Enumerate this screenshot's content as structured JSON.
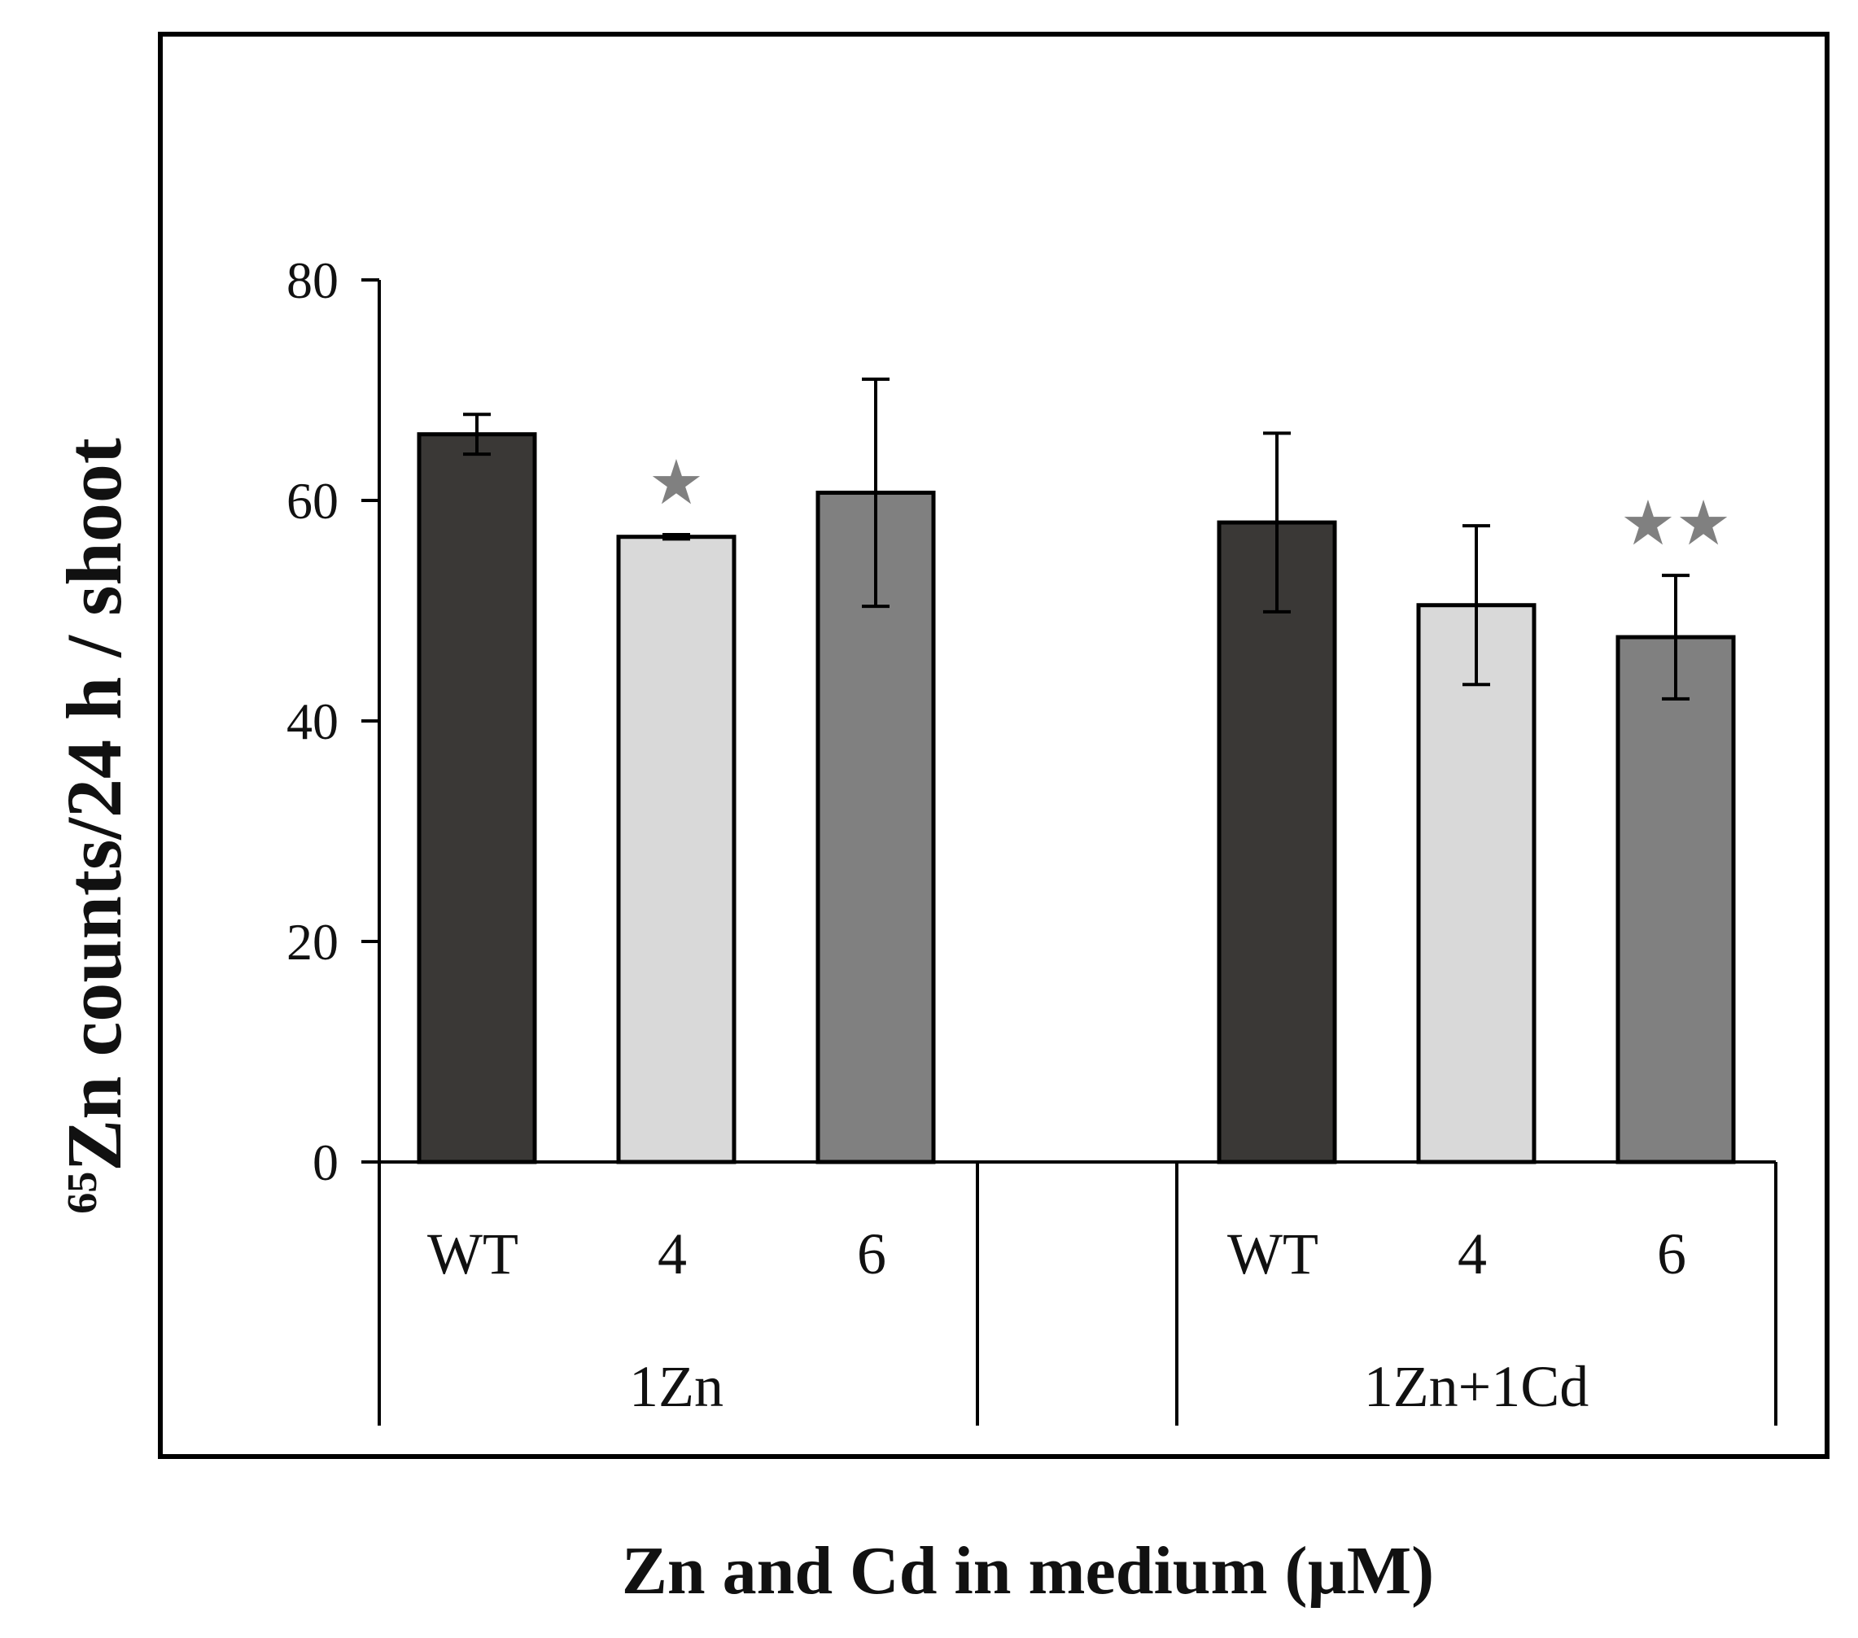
{
  "chart_data": {
    "type": "bar",
    "title": "",
    "ylabel_superscript": "65",
    "ylabel": "Zn counts/24 h / shoot",
    "xlabel": "Zn and Cd in medium (µM)",
    "ylim": [
      0,
      80
    ],
    "yticks": [
      0,
      20,
      40,
      60,
      80
    ],
    "grid": false,
    "groups": [
      {
        "name": "1Zn",
        "bars": [
          {
            "category": "WT",
            "value": 66,
            "error": 1.8,
            "color": "#3a3836",
            "marker": ""
          },
          {
            "category": "4",
            "value": 56.7,
            "error": 0.2,
            "color": "#d9d9d9",
            "marker": "★"
          },
          {
            "category": "6",
            "value": 60.7,
            "error": 10.3,
            "color": "#808080",
            "marker": ""
          }
        ]
      },
      {
        "name": "1Zn+1Cd",
        "bars": [
          {
            "category": "WT",
            "value": 58,
            "error": 8.1,
            "color": "#3a3836",
            "marker": ""
          },
          {
            "category": "4",
            "value": 50.5,
            "error": 7.2,
            "color": "#d9d9d9",
            "marker": ""
          },
          {
            "category": "6",
            "value": 47.6,
            "error": 5.6,
            "color": "#808080",
            "marker": "★★"
          }
        ]
      }
    ]
  }
}
